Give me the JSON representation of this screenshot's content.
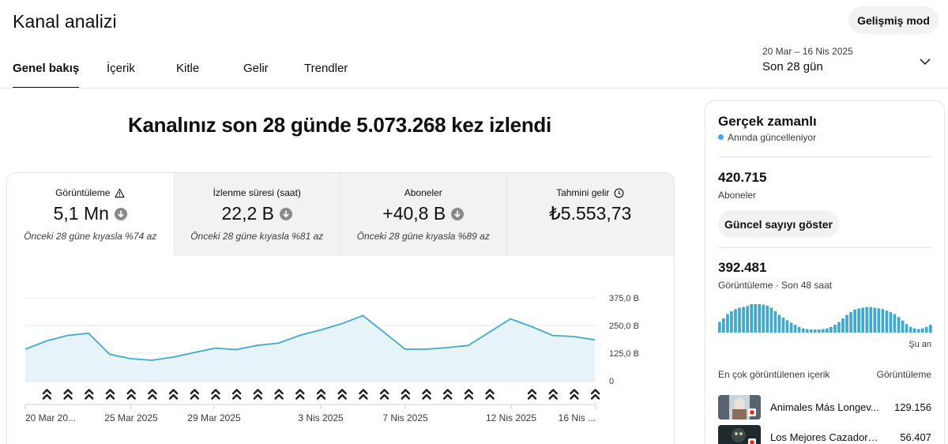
{
  "header": {
    "title": "Kanal analizi",
    "advanced_mode": "Gelişmiş mod",
    "tabs": [
      {
        "label": "Genel bakış",
        "active": true
      },
      {
        "label": "İçerik",
        "active": false
      },
      {
        "label": "Kitle",
        "active": false
      },
      {
        "label": "Gelir",
        "active": false
      },
      {
        "label": "Trendler",
        "active": false
      }
    ],
    "date_range": "20 Mar – 16 Nis 2025",
    "date_label": "Son 28 gün"
  },
  "main": {
    "headline": "Kanalınız son 28 günde 5.073.268 kez izlendi",
    "metrics": [
      {
        "label": "Görüntüleme",
        "value": "5,1 Mn",
        "compare": "Önceki 28 güne kıyasla %74 az",
        "icon": "warning-icon",
        "trend": "down"
      },
      {
        "label": "İzlenme süresi (saat)",
        "value": "22,2 B",
        "compare": "Önceki 28 güne kıyasla %81 az",
        "icon": "",
        "trend": "down"
      },
      {
        "label": "Aboneler",
        "value": "+40,8 B",
        "compare": "Önceki 28 güne kıyasla %89 az",
        "icon": "",
        "trend": "down"
      },
      {
        "label": "Tahmini gelir",
        "value": "₺5.553,73",
        "compare": "",
        "icon": "clock-icon",
        "trend": ""
      }
    ]
  },
  "chart_data": {
    "type": "area",
    "series": [
      {
        "values": [
          143,
          180,
          205,
          215,
          120,
          100,
          93,
          107,
          127,
          148,
          141,
          160,
          170,
          205,
          230,
          258,
          295,
          220,
          143,
          143,
          150,
          160,
          220,
          280,
          245,
          205,
          200,
          185
        ]
      }
    ],
    "x_tick_labels": [
      "20 Mar 20...",
      "25 Mar 2025",
      "29 Mar 2025",
      "3 Nis 2025",
      "7 Nis 2025",
      "12 Nis 2025",
      "16 Nis ..."
    ],
    "y_tick_labels": [
      "375,0 B",
      "250,0 B",
      "125,0 B",
      "0"
    ],
    "ylim": [
      0,
      375
    ],
    "y_ticks": [
      375,
      250,
      125,
      0
    ],
    "marker_days_missing": [
      23
    ],
    "marker_icon": "upload-icon",
    "line_color": "#41a9cc",
    "fill_color": "#e6f4fa",
    "grid": true
  },
  "realtime": {
    "title": "Gerçek zamanlı",
    "live_text": "Anında güncelleniyor",
    "subscribers": "420.715",
    "subscribers_label": "Aboneler",
    "show_count_button": "Güncel sayıyı göster",
    "views": "392.481",
    "views_label": "Görüntüleme · Son 48 saat",
    "bar_values": [
      30,
      40,
      52,
      60,
      66,
      70,
      72,
      75,
      80,
      80,
      80,
      79,
      76,
      70,
      60,
      50,
      42,
      35,
      28,
      22,
      16,
      12,
      10,
      9,
      9,
      9,
      10,
      12,
      16,
      22,
      30,
      40,
      50,
      58,
      65,
      68,
      70,
      72,
      72,
      70,
      68,
      66,
      62,
      58,
      52,
      44,
      34,
      24,
      16,
      12,
      10,
      12,
      16,
      22
    ],
    "bar_color": "#41a9cc",
    "now_label": "Şu an",
    "top_content_label": "En çok görüntülenen içerik",
    "top_views_label": "Görüntüleme",
    "top_videos": [
      {
        "title": "Animales Más Longev...",
        "views": "129.156"
      },
      {
        "title": "Los Mejores Cazadores ...",
        "views": "56.407"
      }
    ]
  }
}
